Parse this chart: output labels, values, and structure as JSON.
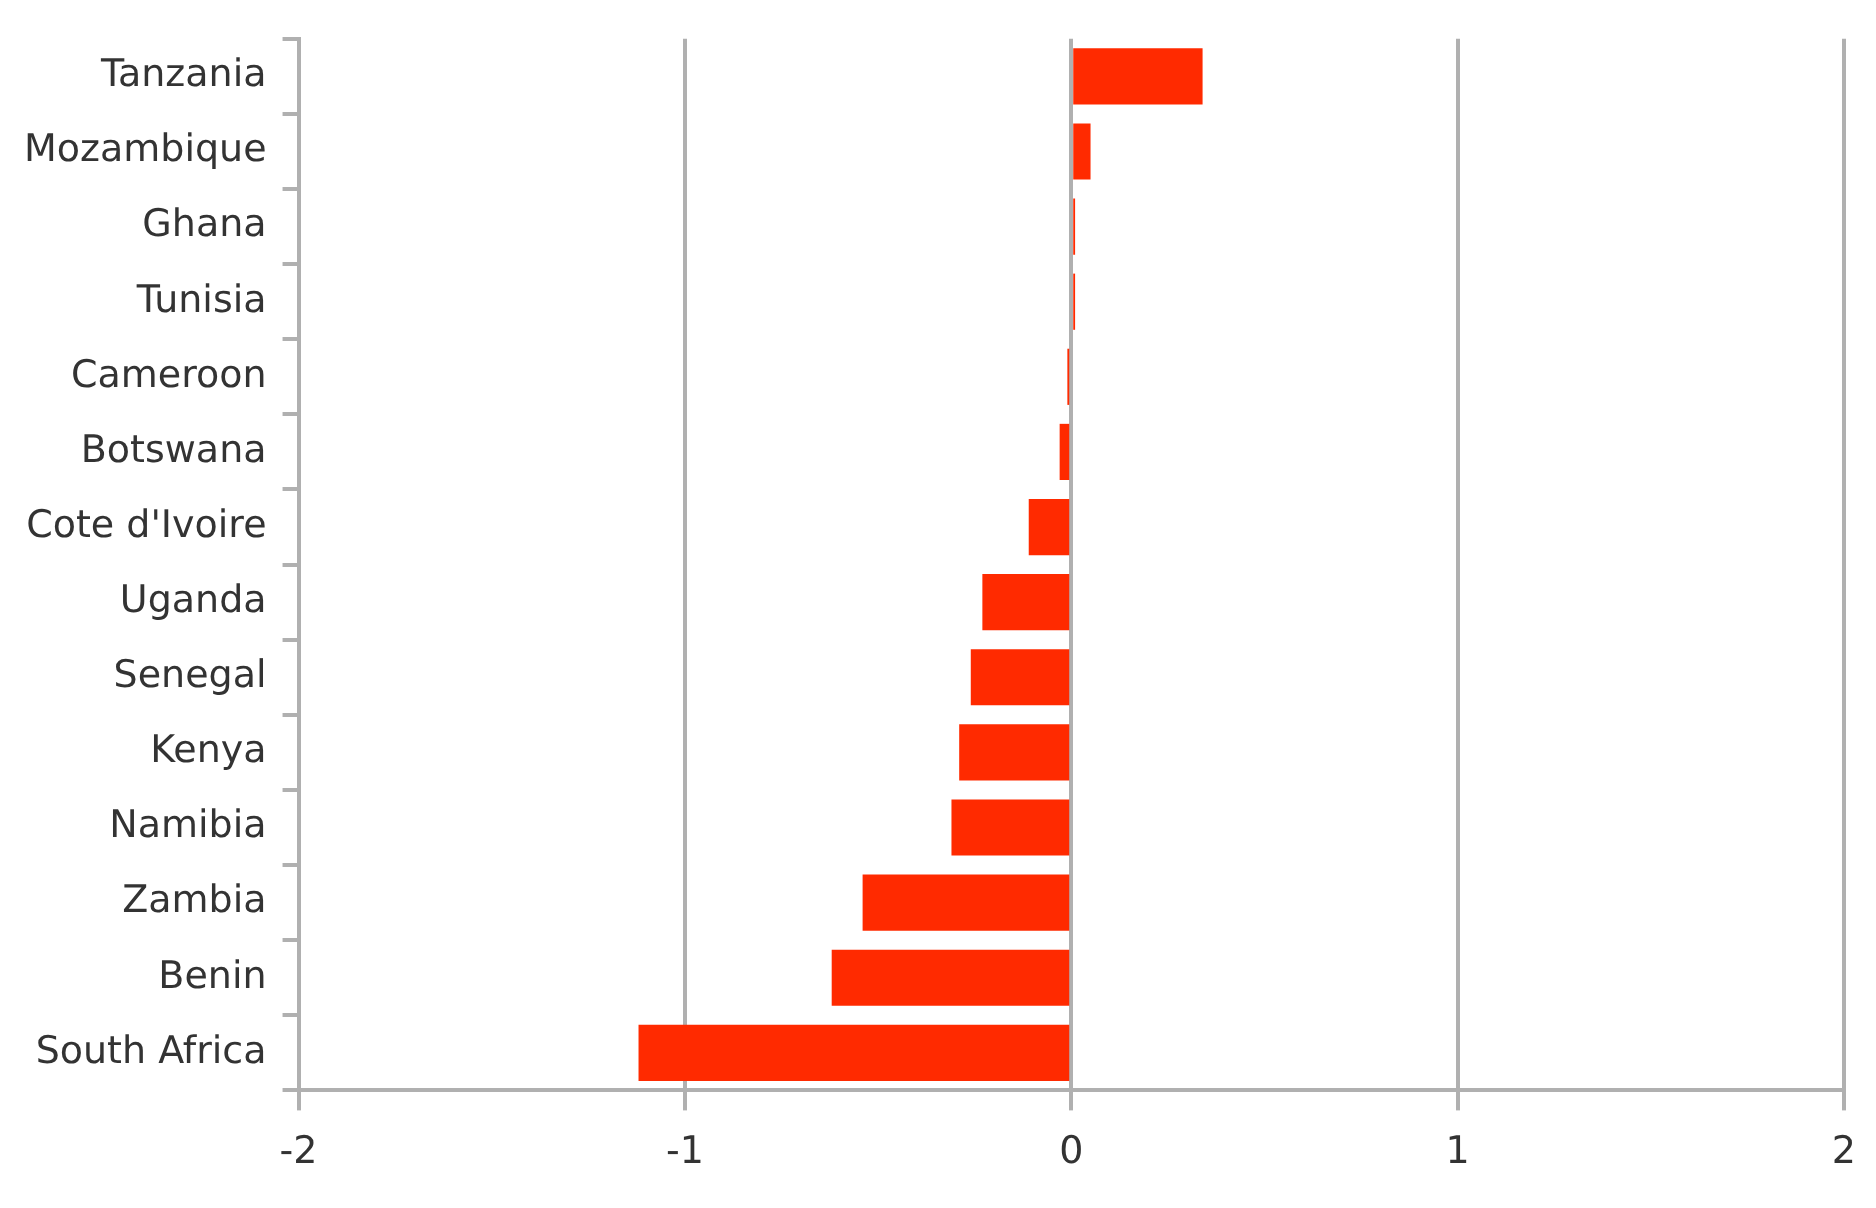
{
  "chart_data": {
    "type": "bar",
    "orientation": "horizontal",
    "categories": [
      "Tanzania",
      "Mozambique",
      "Ghana",
      "Tunisia",
      "Cameroon",
      "Botswana",
      "Cote d'Ivoire",
      "Uganda",
      "Senegal",
      "Kenya",
      "Namibia",
      "Zambia",
      "Benin",
      "South Africa"
    ],
    "values": [
      0.34,
      0.05,
      0.01,
      0.01,
      -0.01,
      -0.03,
      -0.11,
      -0.23,
      -0.26,
      -0.29,
      -0.31,
      -0.54,
      -0.62,
      -1.12
    ],
    "color": "#ff2a00",
    "xlim": [
      -2,
      2
    ],
    "xticks": [
      -2,
      -1,
      0,
      1,
      2
    ],
    "grid": "x",
    "legend": false
  }
}
